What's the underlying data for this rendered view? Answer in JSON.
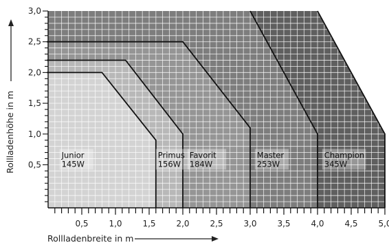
{
  "chart_data": {
    "type": "area",
    "xlabel": "Rollladenbreite in m",
    "ylabel": "Rollladenhöhe in m",
    "xlim": [
      0,
      5.0
    ],
    "ylim": [
      -0.2,
      3.0
    ],
    "x_ticks": [
      {
        "value": 0.5,
        "label": "0,5"
      },
      {
        "value": 1.0,
        "label": "1,0"
      },
      {
        "value": 1.5,
        "label": "1,5"
      },
      {
        "value": 2.0,
        "label": "2,0"
      },
      {
        "value": 2.5,
        "label": "2,5"
      },
      {
        "value": 3.0,
        "label": "3,0"
      },
      {
        "value": 3.5,
        "label": "3,5"
      },
      {
        "value": 4.0,
        "label": "4,0"
      },
      {
        "value": 4.5,
        "label": "4,5"
      },
      {
        "value": 5.0,
        "label": "5,0"
      }
    ],
    "y_ticks": [
      {
        "value": 0.5,
        "label": "0,5"
      },
      {
        "value": 1.0,
        "label": "1,0"
      },
      {
        "value": 1.5,
        "label": "1,5"
      },
      {
        "value": 2.0,
        "label": "2,0"
      },
      {
        "value": 2.5,
        "label": "2,5"
      },
      {
        "value": 3.0,
        "label": "3,0"
      }
    ],
    "grid": true,
    "series": [
      {
        "name": "Junior",
        "sublabel": "145W",
        "color": "#d3d3d3",
        "label_at": [
          0.2,
          0.5
        ],
        "boundary": [
          [
            0,
            2.0
          ],
          [
            0.8,
            2.0
          ],
          [
            1.6,
            0.9
          ],
          [
            1.6,
            -0.2
          ]
        ]
      },
      {
        "name": "Primus",
        "sublabel": "156W",
        "color": "#b8b8b8",
        "label_at": [
          1.63,
          0.5
        ],
        "boundary": [
          [
            0,
            2.2
          ],
          [
            1.15,
            2.2
          ],
          [
            2.0,
            1.0
          ],
          [
            2.0,
            -0.2
          ]
        ]
      },
      {
        "name": "Favorit",
        "sublabel": "184W",
        "color": "#959595",
        "label_at": [
          2.1,
          0.5
        ],
        "boundary": [
          [
            0,
            2.5
          ],
          [
            2.0,
            2.5
          ],
          [
            3.0,
            1.1
          ],
          [
            3.0,
            -0.2
          ]
        ]
      },
      {
        "name": "Master",
        "sublabel": "253W",
        "color": "#7d7d7d",
        "label_at": [
          3.1,
          0.5
        ],
        "boundary": [
          [
            3.0,
            3.0
          ],
          [
            4.0,
            1.0
          ],
          [
            4.0,
            -0.2
          ]
        ]
      },
      {
        "name": "Champion",
        "sublabel": "345W",
        "color": "#5f5f5f",
        "label_at": [
          4.1,
          0.5
        ],
        "boundary": [
          [
            4.0,
            3.0
          ],
          [
            5.0,
            1.0
          ],
          [
            5.0,
            -0.2
          ]
        ]
      }
    ]
  }
}
